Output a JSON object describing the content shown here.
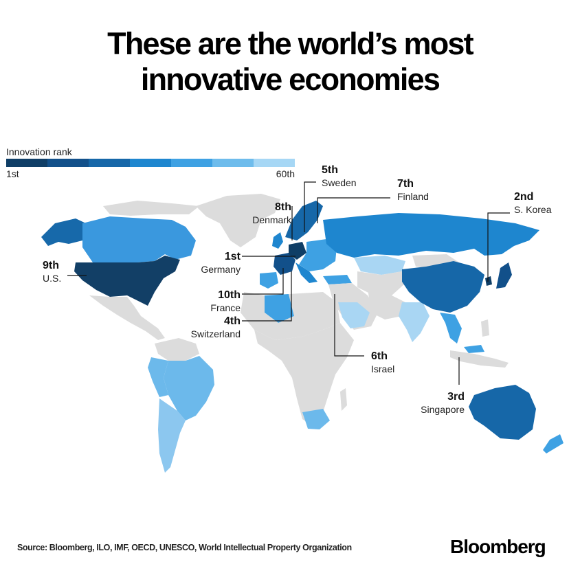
{
  "title": {
    "line1": "These are the world’s most",
    "line2": "innovative economies"
  },
  "legend": {
    "title": "Innovation rank",
    "min_label": "1st",
    "max_label": "60th",
    "colors": [
      "#0f3e66",
      "#12508a",
      "#1667a8",
      "#1e86cf",
      "#3ea1e3",
      "#6ebcec",
      "#a6d7f5"
    ]
  },
  "colors": {
    "no_data": "#dcdcdc",
    "leader": "#123f66",
    "land_mid": "#1769aa",
    "land_light": "#6cb9eb",
    "land_lighter": "#a9d6f3"
  },
  "callouts": [
    {
      "id": "germany",
      "rank": "1st",
      "country": "Germany"
    },
    {
      "id": "skorea",
      "rank": "2nd",
      "country": "S. Korea"
    },
    {
      "id": "singapore",
      "rank": "3rd",
      "country": "Singapore"
    },
    {
      "id": "switzerland",
      "rank": "4th",
      "country": "Switzerland"
    },
    {
      "id": "sweden",
      "rank": "5th",
      "country": "Sweden"
    },
    {
      "id": "israel",
      "rank": "6th",
      "country": "Israel"
    },
    {
      "id": "finland",
      "rank": "7th",
      "country": "Finland"
    },
    {
      "id": "denmark",
      "rank": "8th",
      "country": "Denmark"
    },
    {
      "id": "us",
      "rank": "9th",
      "country": "U.S."
    },
    {
      "id": "france",
      "rank": "10th",
      "country": "France"
    }
  ],
  "footer": {
    "source": "Source: Bloomberg, ILO, IMF, OECD, UNESCO, World Intellectual Property Organization",
    "brand": "Bloomberg"
  }
}
